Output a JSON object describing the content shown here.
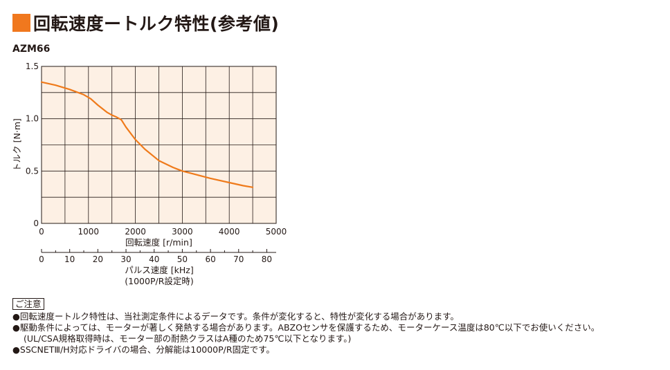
{
  "header": {
    "title": "回転速度ートルク特性(参考値)",
    "accent_color": "#f0781e"
  },
  "model": "AZM66",
  "chart_data": {
    "type": "line",
    "xlabel": "回転速度 [r/min]",
    "ylabel": "トルク [N·m]",
    "xlim": [
      0,
      5000
    ],
    "ylim": [
      0,
      1.5
    ],
    "x_ticks": [
      "0",
      "1000",
      "2000",
      "3000",
      "4000",
      "5000"
    ],
    "y_ticks": [
      "0",
      "0.5",
      "1.0",
      "1.5"
    ],
    "grid": true,
    "plot_background": "#fdf0e4",
    "line_color": "#ef7a1a",
    "secondary_axis": {
      "label_line1": "パルス速度 [kHz]",
      "label_line2": "(1000P/R設定時)",
      "range": [
        0,
        83.33
      ],
      "ticks": [
        "0",
        "10",
        "20",
        "30",
        "40",
        "50",
        "60",
        "70",
        "80"
      ]
    },
    "series": [
      {
        "x": [
          0,
          300,
          600,
          900,
          1050,
          1200,
          1400,
          1500,
          1600,
          1700,
          1800,
          2000,
          2200,
          2500,
          2800,
          3000,
          3300,
          3600,
          4000,
          4300,
          4500
        ],
        "values": [
          1.35,
          1.32,
          1.28,
          1.23,
          1.19,
          1.13,
          1.06,
          1.035,
          1.015,
          0.99,
          0.92,
          0.8,
          0.71,
          0.6,
          0.535,
          0.5,
          0.465,
          0.43,
          0.39,
          0.36,
          0.345
        ]
      }
    ]
  },
  "notes": {
    "heading": "ご注意",
    "items": [
      "●回転速度ートルク特性は、当社測定条件によるデータです。条件が変化すると、特性が変化する場合があります。",
      "●駆動条件によっては、モーターが著しく発熱する場合があります。ABZOセンサを保護するため、モーターケース温度は80℃以下でお使いください。",
      "(UL/CSA規格取得時は、モーター部の耐熱クラスはA種のため75℃以下となります。)",
      "●SSCNETⅢ/H対応ドライバの場合、分解能は10000P/R固定です。"
    ]
  }
}
